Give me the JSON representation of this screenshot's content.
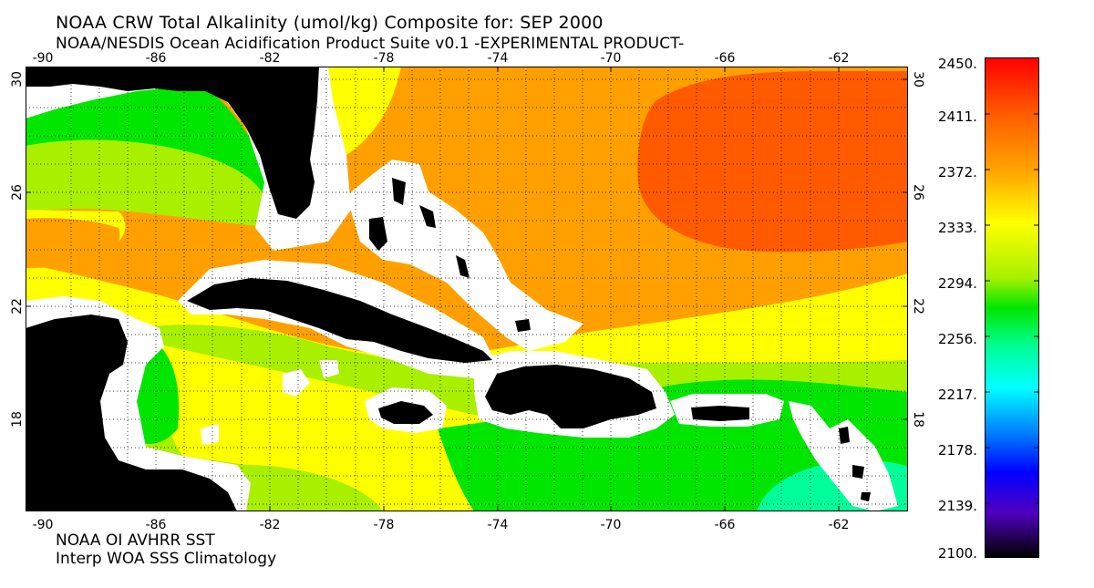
{
  "header": {
    "title": "NOAA CRW Total Alkalinity (umol/kg) Composite for: SEP 2000",
    "subtitle": "NOAA/NESDIS Ocean Acidification Product Suite  v0.1 -EXPERIMENTAL PRODUCT-"
  },
  "footer": {
    "line1": "NOAA OI AVHRR SST",
    "line2": "Interp WOA SSS Climatology"
  },
  "axes": {
    "lon_ticks": [
      "-90",
      "-86",
      "-82",
      "-78",
      "-74",
      "-70",
      "-66",
      "-62"
    ],
    "lat_ticks": [
      "30",
      "26",
      "22",
      "18"
    ]
  },
  "colorbar": {
    "labels": [
      "2450.",
      "2411.",
      "2372.",
      "2333.",
      "2294.",
      "2256.",
      "2217.",
      "2178.",
      "2139.",
      "2100."
    ],
    "min": 2100,
    "max": 2450
  },
  "colors": {
    "land": "#000000",
    "coast_mask": "#ffffff",
    "scale": [
      "#ff0000",
      "#ff5a00",
      "#ffa000",
      "#ffff00",
      "#a8f000",
      "#00e600",
      "#00ff9a",
      "#00ffff",
      "#0080ff",
      "#0000ff",
      "#5000c0",
      "#000000"
    ]
  }
}
